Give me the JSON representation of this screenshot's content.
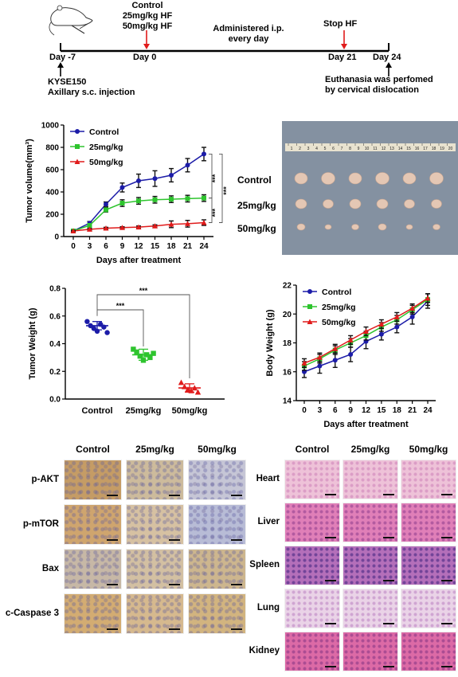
{
  "timeline": {
    "top_label_1": "Control",
    "top_label_2": "25mg/kg HF",
    "top_label_3": "50mg/kg HF",
    "admin_1": "Administered i.p.",
    "admin_2": "every day",
    "stop": "Stop HF",
    "day_m7": "Day -7",
    "day_0": "Day 0",
    "day_21": "Day 21",
    "day_24": "Day 24",
    "inj_1": "KYSE150",
    "inj_2": "Axillary s.c. injection",
    "euth_1": "Euthanasia was perfomed",
    "euth_2": "by cervical dislocation"
  },
  "photo": {
    "labels": [
      "Control",
      "25mg/kg",
      "50mg/kg"
    ],
    "ruler_numbers": [
      "1",
      "2",
      "3",
      "4",
      "5",
      "6",
      "7",
      "8",
      "9",
      "10",
      "11",
      "12",
      "13",
      "14",
      "15",
      "16",
      "17",
      "18",
      "19",
      "20"
    ]
  },
  "ihc": {
    "columns": [
      "Control",
      "25mg/kg",
      "50mg/kg"
    ],
    "rows": [
      "p-AKT",
      "p-mTOR",
      "Bax",
      "c-Caspase 3"
    ]
  },
  "he": {
    "columns": [
      "Control",
      "25mg/kg",
      "50mg/kg"
    ],
    "rows": [
      "Heart",
      "Liver",
      "Spleen",
      "Lung",
      "Kidney"
    ]
  },
  "chart_data": [
    {
      "type": "line",
      "ylabel": "Tumor volume(mm³)",
      "xlabel": "Days after treatment",
      "x": [
        0,
        3,
        6,
        9,
        12,
        15,
        18,
        21,
        24
      ],
      "ylim": [
        0,
        1000
      ],
      "yticks": [
        0,
        200,
        400,
        600,
        800,
        1000
      ],
      "legend_position": "top-left",
      "series": [
        {
          "name": "Control",
          "color": "#1c1ca8",
          "marker": "circle",
          "values": [
            50,
            120,
            290,
            440,
            500,
            520,
            550,
            640,
            740
          ],
          "err": [
            10,
            15,
            20,
            40,
            60,
            70,
            60,
            60,
            60
          ]
        },
        {
          "name": "25mg/kg",
          "color": "#2ec42e",
          "marker": "square",
          "values": [
            50,
            100,
            240,
            300,
            320,
            330,
            335,
            340,
            345
          ],
          "err": [
            8,
            10,
            20,
            30,
            30,
            30,
            30,
            30,
            30
          ]
        },
        {
          "name": "50mg/kg",
          "color": "#e01b1b",
          "marker": "triangle",
          "values": [
            50,
            65,
            75,
            80,
            85,
            95,
            110,
            115,
            125
          ],
          "err": [
            5,
            8,
            8,
            8,
            10,
            10,
            30,
            30,
            25
          ]
        }
      ],
      "significance": [
        "***",
        "***",
        "***"
      ]
    },
    {
      "type": "scatter",
      "ylabel": "Tumor Weight (g)",
      "categories": [
        "Control",
        "25mg/kg",
        "50mg/kg"
      ],
      "ylim": [
        0,
        0.8
      ],
      "yticks": [
        "0.0",
        "0.2",
        "0.4",
        "0.6",
        "0.8"
      ],
      "series": [
        {
          "name": "Control",
          "color": "#1c1ca8",
          "marker": "circle",
          "values": [
            0.56,
            0.53,
            0.51,
            0.49,
            0.54,
            0.52,
            0.48
          ],
          "mean": 0.53,
          "sd": 0.03
        },
        {
          "name": "25mg/kg",
          "color": "#2ec42e",
          "marker": "square",
          "values": [
            0.36,
            0.34,
            0.31,
            0.28,
            0.32,
            0.3,
            0.33
          ],
          "mean": 0.32,
          "sd": 0.04
        },
        {
          "name": "50mg/kg",
          "color": "#e01b1b",
          "marker": "triangle",
          "values": [
            0.12,
            0.09,
            0.07,
            0.06,
            0.08,
            0.05
          ],
          "mean": 0.08,
          "sd": 0.03
        }
      ],
      "significance": [
        "***",
        "***"
      ]
    },
    {
      "type": "line",
      "ylabel": "Body Weight (g)",
      "xlabel": "Days after treatment",
      "x": [
        0,
        3,
        6,
        9,
        12,
        15,
        18,
        21,
        24
      ],
      "ylim": [
        14,
        22
      ],
      "yticks": [
        14,
        16,
        18,
        20,
        22
      ],
      "legend_position": "top-left",
      "series": [
        {
          "name": "Control",
          "color": "#1c1ca8",
          "marker": "circle",
          "values": [
            16.0,
            16.4,
            16.8,
            17.2,
            18.1,
            18.6,
            19.1,
            19.8,
            20.9
          ],
          "err": [
            0.4,
            0.5,
            0.5,
            0.5,
            0.5,
            0.4,
            0.4,
            0.5,
            0.5
          ]
        },
        {
          "name": "25mg/kg",
          "color": "#2ec42e",
          "marker": "square",
          "values": [
            16.4,
            16.9,
            17.5,
            18.0,
            18.5,
            19.1,
            19.6,
            20.3,
            21.0
          ],
          "err": [
            0.3,
            0.3,
            0.3,
            0.3,
            0.3,
            0.3,
            0.3,
            0.3,
            0.4
          ]
        },
        {
          "name": "50mg/kg",
          "color": "#e01b1b",
          "marker": "triangle",
          "values": [
            16.6,
            17.0,
            17.6,
            18.2,
            18.8,
            19.3,
            19.8,
            20.4,
            21.1
          ],
          "err": [
            0.3,
            0.3,
            0.3,
            0.3,
            0.3,
            0.3,
            0.3,
            0.3,
            0.3
          ]
        }
      ]
    }
  ]
}
